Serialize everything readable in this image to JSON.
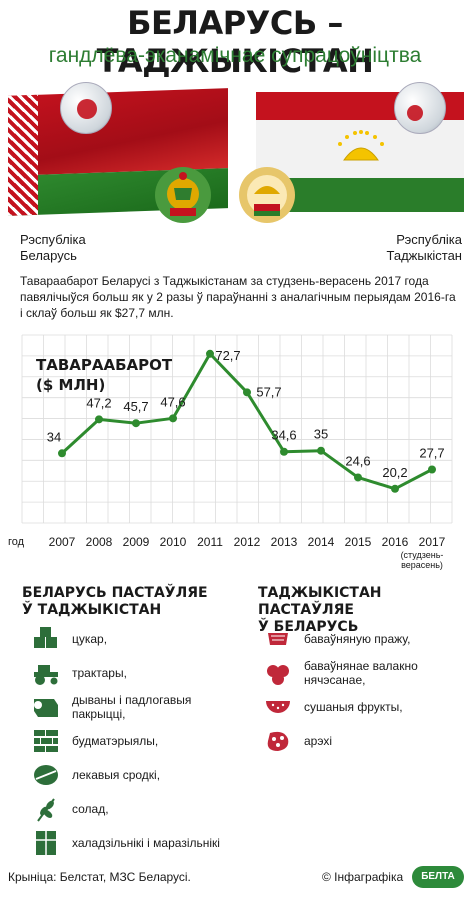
{
  "header": {
    "title": "БЕЛАРУСЬ – ТАДЖЫКІСТАН",
    "subtitle": "гандлёва-эканамічнае супрацоўніцтва"
  },
  "countries": {
    "left_label": "Рэспубліка\nБеларусь",
    "right_label": "Рэспубліка\nТаджыкістан",
    "left_line1": "Рэспубліка",
    "left_line2": "Беларусь",
    "right_line1": "Рэспубліка",
    "right_line2": "Таджыкістан"
  },
  "intro": "Тавараабарот Беларусі з Таджыкістанам за студзень-верасень 2017 года павялічыўся больш як у 2 разы ў параўнанні з аналагічным перыядам 2016-га і склаў больш як $27,7 млн.",
  "chart_data": {
    "type": "line",
    "title_line1": "ТАВАРААБАРОТ",
    "title_line2": "($ МЛН)",
    "xlabel": "год",
    "x": [
      "2007",
      "2008",
      "2009",
      "2010",
      "2011",
      "2012",
      "2013",
      "2014",
      "2015",
      "2016",
      "2017"
    ],
    "values": [
      34,
      47.2,
      45.7,
      47.6,
      72.7,
      57.7,
      34.6,
      35,
      24.6,
      20.2,
      27.7
    ],
    "value_labels": [
      "34",
      "47,2",
      "45,7",
      "47,6",
      "72,7",
      "57,7",
      "34,6",
      "35",
      "24,6",
      "20,2",
      "27,7"
    ],
    "x_note_line1": "(студзень-",
    "x_note_line2": "верасень)",
    "grid": true,
    "line_color": "#2e8b2e"
  },
  "exports_by": {
    "title_line1": "БЕЛАРУСЬ ПАСТАЎЛЯЕ",
    "title_line2": "Ў ТАДЖЫКІСТАН",
    "items": [
      {
        "label": "цукар,",
        "icon": "sugar-cubes-icon"
      },
      {
        "label": "трактары,",
        "icon": "tractor-icon"
      },
      {
        "label_line1": "дываны і падлогавыя",
        "label_line2": "пакрыцці,",
        "icon": "carpet-roll-icon"
      },
      {
        "label": "будматэрыялы,",
        "icon": "bricks-icon"
      },
      {
        "label": "лекавыя сродкі,",
        "icon": "pills-icon"
      },
      {
        "label": "солад,",
        "icon": "wheat-icon"
      },
      {
        "label": "халадзільнікі і маразільнікі",
        "icon": "fridge-icon"
      }
    ]
  },
  "exports_tj": {
    "title_line1": "ТАДЖЫКІСТАН ПАСТАЎЛЯЕ",
    "title_line2": "Ў БЕЛАРУСЬ",
    "items": [
      {
        "label": "баваўняную пражу,",
        "icon": "yarn-icon"
      },
      {
        "label_line1": "баваўнянае валакно",
        "label_line2": "нячэсанае,",
        "icon": "cotton-icon"
      },
      {
        "label": "сушаныя фрукты,",
        "icon": "watermelon-icon"
      },
      {
        "label": "арэхі",
        "icon": "nuts-icon"
      }
    ]
  },
  "footer": {
    "source": "Крыніца: Белстат, МЗС Беларусі.",
    "credit": "© Інфаграфіка",
    "logo": "БЕЛТА"
  },
  "colors": {
    "green": "#2e8b2e",
    "red": "#c4121e",
    "icon_green": "#2d6e3a",
    "icon_red": "#c0283a"
  }
}
